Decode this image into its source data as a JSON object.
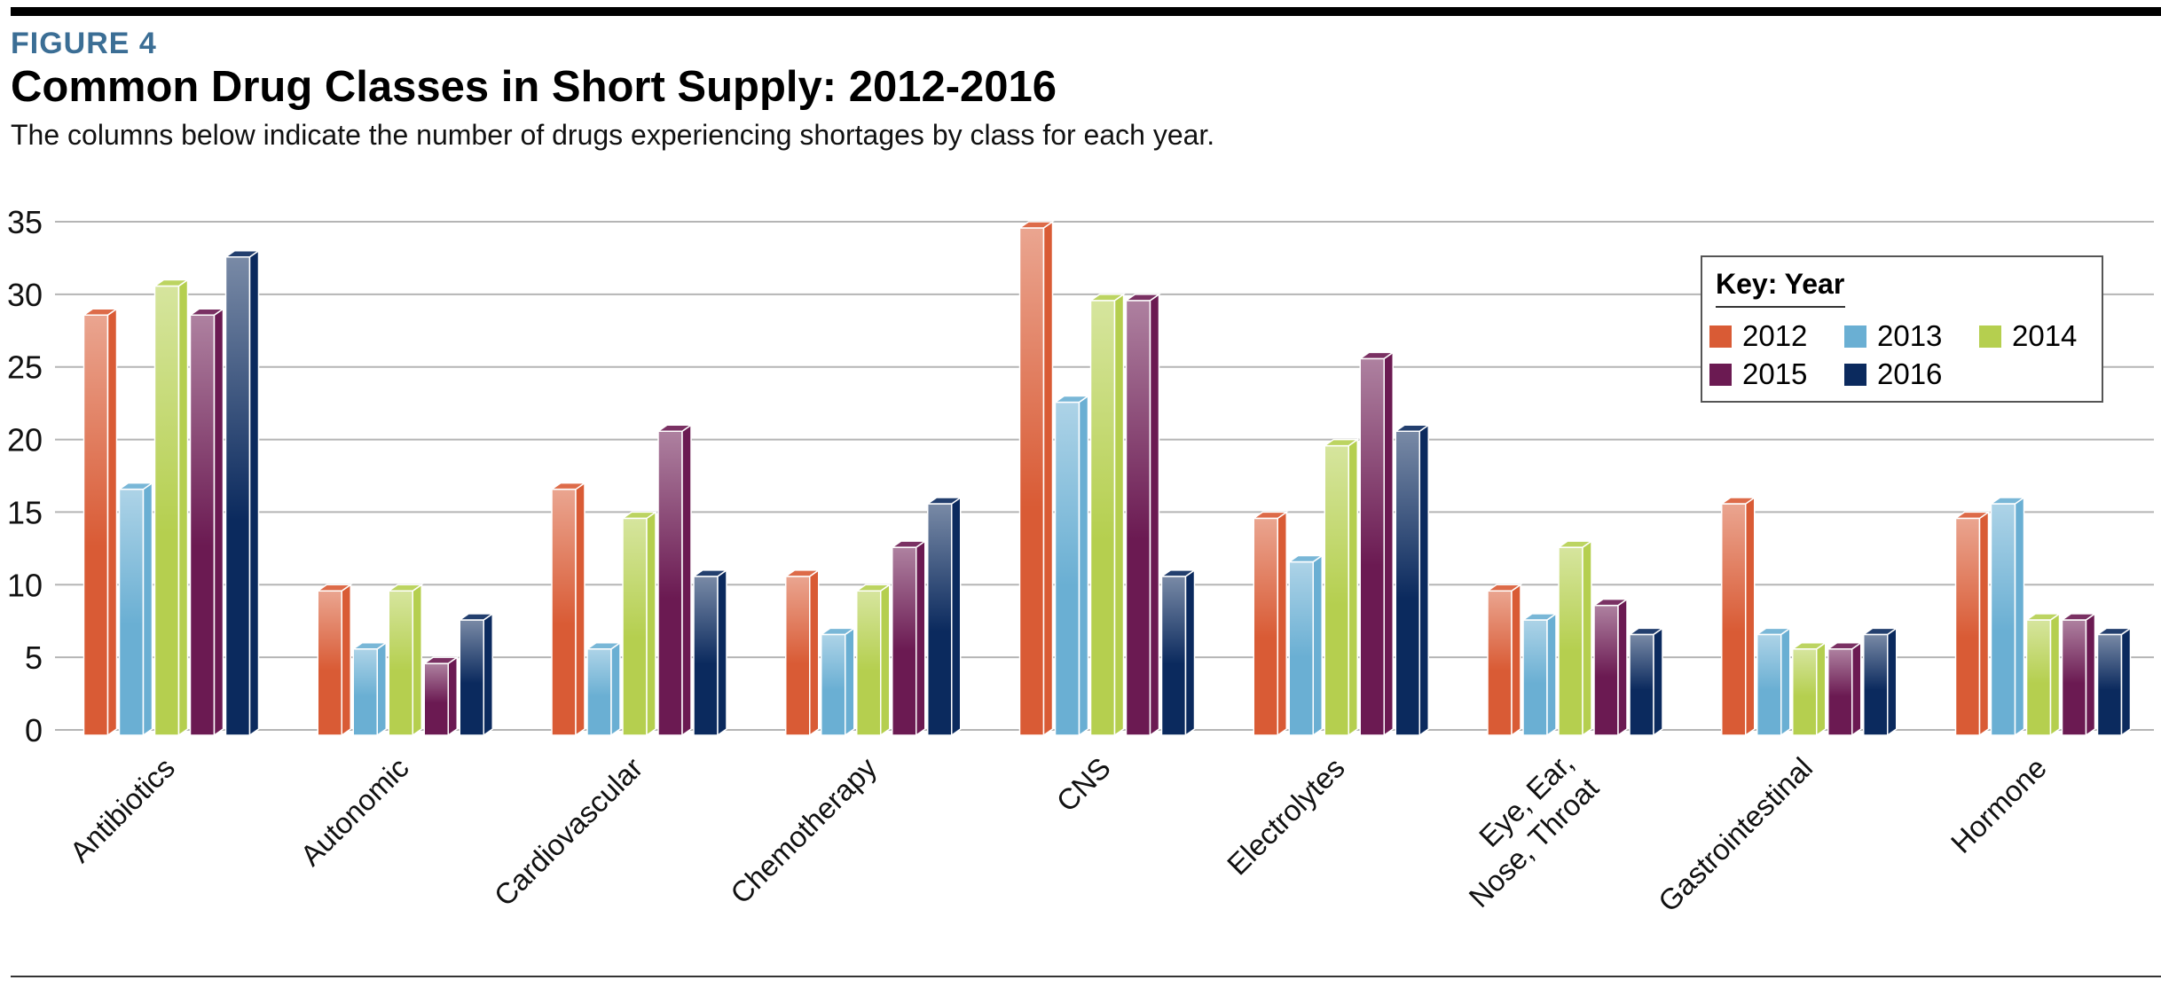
{
  "header": {
    "figure_label": "FIGURE 4",
    "title": "Common Drug Classes in Short Supply: 2012-2016",
    "subtitle": "The columns below indicate the number of drugs experiencing shortages by class for each year."
  },
  "chart_data": {
    "type": "bar",
    "style": "3d-clustered-column",
    "title": "Common Drug Classes in Short Supply: 2012-2016",
    "xlabel": "",
    "ylabel": "",
    "ylim": [
      0,
      35
    ],
    "yticks": [
      0,
      5,
      10,
      15,
      20,
      25,
      30,
      35
    ],
    "grid": true,
    "legend_position": "top-right",
    "legend_title": "Key: Year",
    "categories": [
      "Antibiotics",
      "Autonomic",
      "Cardiovascular",
      "Chemotherapy",
      "CNS",
      "Electrolytes",
      "Eye, Ear, Nose, Throat",
      "Gastrointestinal",
      "Hormone"
    ],
    "category_lines": [
      [
        "Antibiotics"
      ],
      [
        "Autonomic"
      ],
      [
        "Cardiovascular"
      ],
      [
        "Chemotherapy"
      ],
      [
        "CNS"
      ],
      [
        "Electrolytes"
      ],
      [
        "Eye, Ear,",
        "Nose, Throat"
      ],
      [
        "Gastrointestinal"
      ],
      [
        "Hormone"
      ]
    ],
    "series": [
      {
        "name": "2012",
        "color": "#d95b35",
        "values": [
          29,
          10,
          17,
          11,
          35,
          15,
          10,
          16,
          15
        ]
      },
      {
        "name": "2013",
        "color": "#6aafd3",
        "values": [
          17,
          6,
          6,
          7,
          23,
          12,
          8,
          7,
          16
        ]
      },
      {
        "name": "2014",
        "color": "#b5cf4f",
        "values": [
          31,
          10,
          15,
          10,
          30,
          20,
          13,
          6,
          8
        ]
      },
      {
        "name": "2015",
        "color": "#6b1a52",
        "values": [
          29,
          5,
          21,
          13,
          30,
          26,
          9,
          6,
          8
        ]
      },
      {
        "name": "2016",
        "color": "#0b2a5e",
        "values": [
          33,
          8,
          11,
          16,
          11,
          21,
          7,
          7,
          7
        ]
      }
    ]
  }
}
